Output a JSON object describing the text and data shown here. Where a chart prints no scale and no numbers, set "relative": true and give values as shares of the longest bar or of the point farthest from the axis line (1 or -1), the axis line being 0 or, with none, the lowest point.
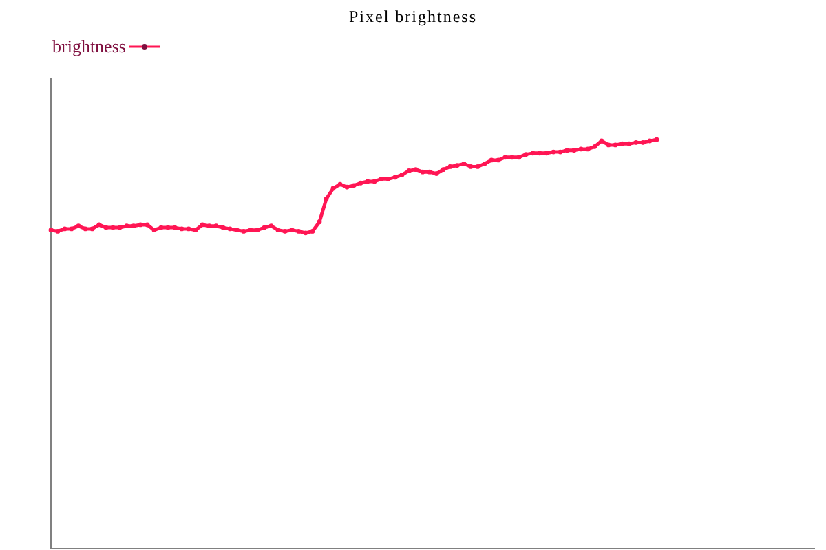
{
  "chart_data": {
    "type": "line",
    "title": "Pixel brightness",
    "relative": true,
    "categories": [
      null,
      null,
      null,
      null,
      null,
      null,
      null,
      null,
      null,
      null,
      null,
      null,
      null,
      null,
      null,
      null,
      null,
      null,
      null,
      null,
      null,
      null,
      null,
      null,
      null,
      null,
      null,
      null,
      null,
      null,
      null,
      null,
      null,
      null,
      null,
      null,
      null,
      null,
      null,
      null,
      null,
      null,
      null,
      null,
      null,
      null,
      null,
      null,
      null,
      null,
      null,
      null,
      null,
      null,
      null,
      null,
      null,
      null,
      null,
      null,
      null,
      null,
      null,
      null,
      null,
      null,
      null,
      null,
      null,
      null,
      null,
      null,
      null,
      null,
      null,
      null,
      null,
      null,
      null,
      null,
      null,
      null,
      null,
      null,
      null,
      null,
      null,
      null,
      null,
      null,
      null,
      null,
      null,
      null,
      null,
      null,
      null,
      null,
      null,
      null,
      null,
      null,
      null,
      null,
      null,
      null,
      null,
      null,
      null,
      null,
      null,
      null
    ],
    "series": [
      {
        "name": "brightness",
        "color": "#ff1654",
        "values": [
          0.779,
          0.776,
          0.782,
          0.782,
          0.789,
          0.782,
          0.782,
          0.792,
          0.785,
          0.785,
          0.785,
          0.789,
          0.789,
          0.792,
          0.792,
          0.779,
          0.785,
          0.785,
          0.785,
          0.782,
          0.782,
          0.779,
          0.792,
          0.789,
          0.789,
          0.785,
          0.782,
          0.779,
          0.776,
          0.779,
          0.779,
          0.785,
          0.789,
          0.779,
          0.776,
          0.779,
          0.776,
          0.772,
          0.776,
          0.799,
          0.855,
          0.881,
          0.891,
          0.884,
          0.888,
          0.894,
          0.898,
          0.898,
          0.904,
          0.904,
          0.908,
          0.914,
          0.924,
          0.927,
          0.921,
          0.921,
          0.917,
          0.927,
          0.934,
          0.937,
          0.941,
          0.934,
          0.934,
          0.941,
          0.95,
          0.95,
          0.957,
          0.957,
          0.957,
          0.964,
          0.967,
          0.967,
          0.967,
          0.97,
          0.97,
          0.974,
          0.974,
          0.977,
          0.977,
          0.983,
          0.997,
          0.987,
          0.987,
          0.99,
          0.99,
          0.993,
          0.993,
          0.997,
          1,
          null,
          null,
          null,
          null,
          null,
          null,
          null,
          null,
          null,
          null,
          null,
          null,
          null,
          null,
          null,
          null,
          null,
          null,
          null,
          null,
          null,
          null,
          null
        ]
      }
    ],
    "legend": "top left",
    "marker": "circle",
    "line_style": "solid",
    "grid": false
  }
}
